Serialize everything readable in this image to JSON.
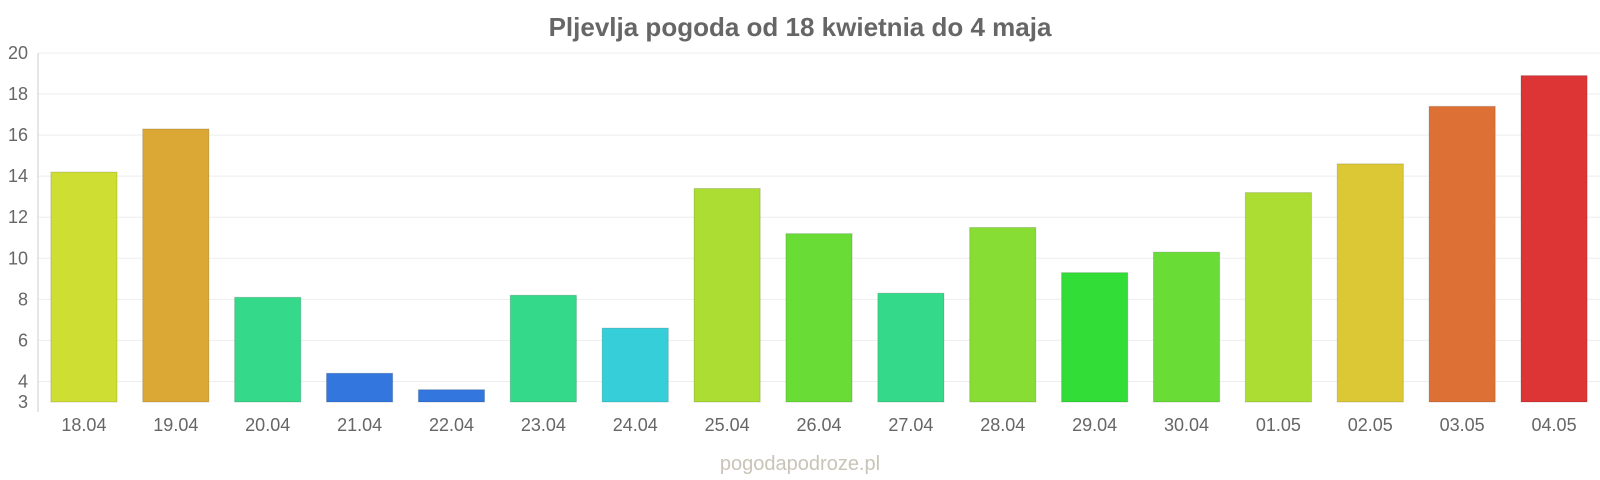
{
  "chart_data": {
    "type": "bar",
    "title": "Pljevlja pogoda od 18 kwietnia do 4 maja",
    "xlabel": "",
    "ylabel": "",
    "ylim": [
      3,
      20
    ],
    "yticks": [
      3,
      4,
      6,
      8,
      10,
      12,
      14,
      16,
      18,
      20
    ],
    "grid": true,
    "categories": [
      "18.04",
      "19.04",
      "20.04",
      "21.04",
      "22.04",
      "23.04",
      "24.04",
      "25.04",
      "26.04",
      "27.04",
      "28.04",
      "29.04",
      "30.04",
      "01.05",
      "02.05",
      "03.05",
      "04.05"
    ],
    "values": [
      14.2,
      16.3,
      8.1,
      4.4,
      3.6,
      8.2,
      6.6,
      13.4,
      11.2,
      8.3,
      11.5,
      9.3,
      10.3,
      13.2,
      14.6,
      17.4,
      18.9
    ],
    "colors": [
      "#cfde33",
      "#dca835",
      "#35d98a",
      "#3376dd",
      "#3376dd",
      "#35d98a",
      "#36cfd9",
      "#acdd33",
      "#69dd35",
      "#35d98a",
      "#88dd35",
      "#33dd38",
      "#69dd35",
      "#acdd33",
      "#dcc835",
      "#dd7035",
      "#dd3535"
    ]
  },
  "watermark": "pogodapodroze.pl"
}
